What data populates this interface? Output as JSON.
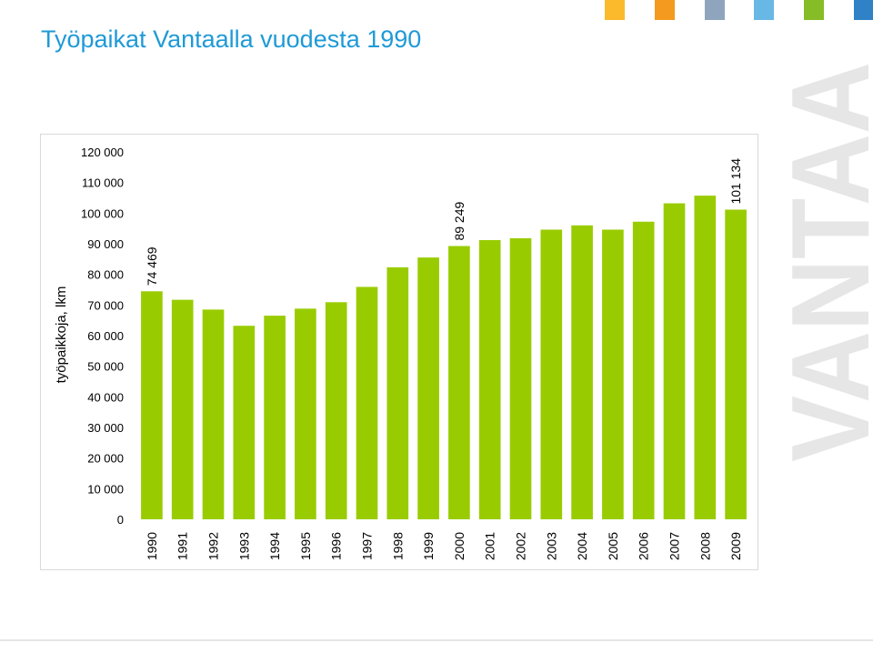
{
  "page_title": "Työpaikat Vantaalla vuodesta 1990",
  "brand_squares": [
    "#fbb92c",
    "#f39a1f",
    "#8fa5bd",
    "#67b8e4",
    "#86bc25",
    "#2f82c5"
  ],
  "watermark_text": "VANTAA",
  "chart_data": {
    "type": "bar",
    "title": "",
    "xlabel": "",
    "ylabel": "työpaikkoja, lkm",
    "ylim": [
      0,
      120000
    ],
    "yticks": [
      0,
      10000,
      20000,
      30000,
      40000,
      50000,
      60000,
      70000,
      80000,
      90000,
      100000,
      110000,
      120000
    ],
    "ytick_labels": [
      "0",
      "10 000",
      "20 000",
      "30 000",
      "40 000",
      "50 000",
      "60 000",
      "70 000",
      "80 000",
      "90 000",
      "100 000",
      "110 000",
      "120 000"
    ],
    "categories": [
      "1990",
      "1991",
      "1992",
      "1993",
      "1994",
      "1995",
      "1996",
      "1997",
      "1998",
      "1999",
      "2000",
      "2001",
      "2002",
      "2003",
      "2004",
      "2005",
      "2006",
      "2007",
      "2008",
      "2009"
    ],
    "values": [
      74469,
      71700,
      68500,
      63200,
      66500,
      68800,
      70900,
      75900,
      82300,
      85500,
      89249,
      91200,
      91800,
      94600,
      96000,
      94600,
      97200,
      103200,
      105700,
      101134
    ],
    "data_labels": [
      {
        "index": 0,
        "text": "74 469"
      },
      {
        "index": 10,
        "text": "89 249"
      },
      {
        "index": 19,
        "text": "101 134"
      }
    ],
    "bar_color": "#99cc00",
    "grid": false,
    "legend": "none"
  }
}
